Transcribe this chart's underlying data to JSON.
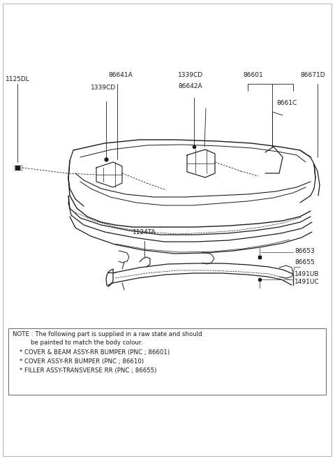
{
  "bg_color": "#ffffff",
  "lc": "#1a1a1a",
  "fig_w": 4.8,
  "fig_h": 6.57,
  "dpi": 100,
  "note_line1": "NOTE : The following part is supplied in a raw state and should",
  "note_line2": "be painted to match the body colour.",
  "note_b1": "* COVER & BEAM ASSY-RR BUMPER (PNC ; 86601)",
  "note_b2": "* COVER ASSY-RR BUMPER (PNC ; 86610)",
  "note_b3": "* FILLER ASSY-TRANSVERSE RR (PNC ; 86655)"
}
